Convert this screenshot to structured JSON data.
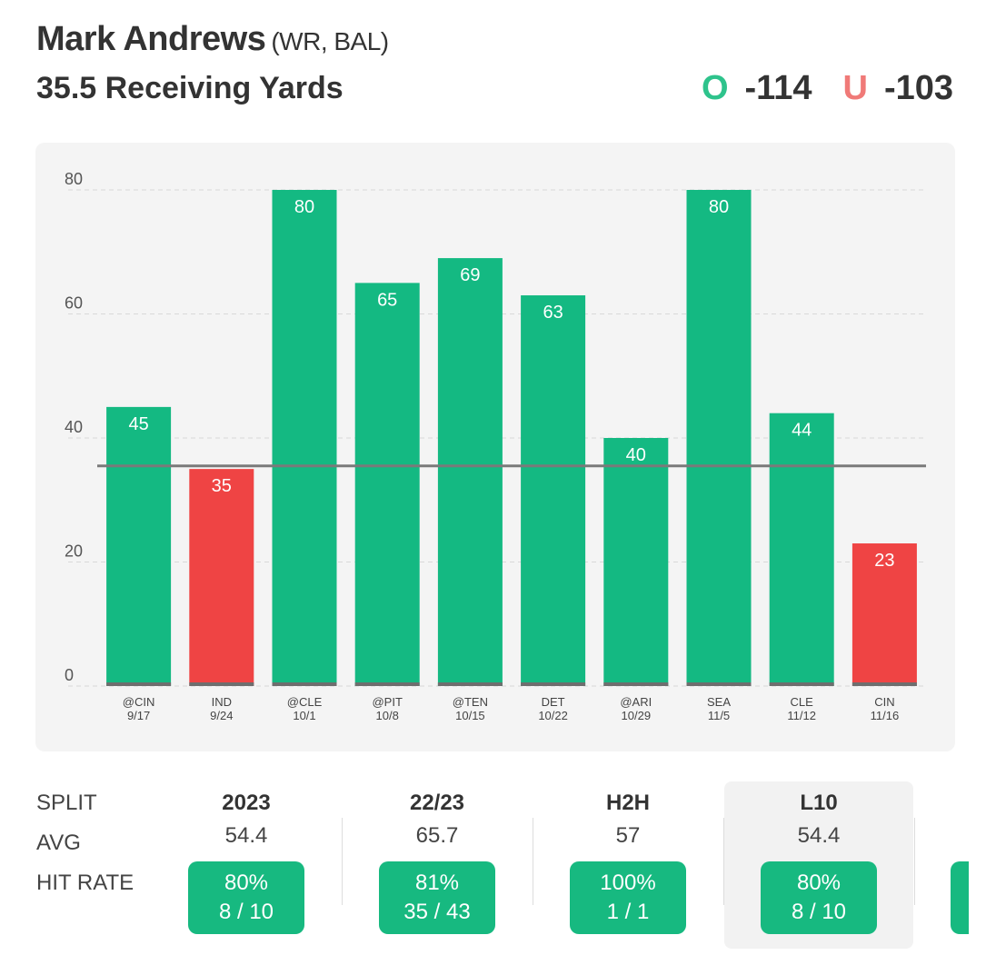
{
  "player": {
    "name": "Mark Andrews",
    "meta": "(WR, BAL)"
  },
  "prop": {
    "line_label": "35.5 Receiving Yards"
  },
  "odds": {
    "over_letter": "O",
    "over_value": "-114",
    "under_letter": "U",
    "under_value": "-103"
  },
  "colors": {
    "over": "#14b982",
    "under": "#ef4444",
    "line": "#7a7a7a"
  },
  "chart_data": {
    "type": "bar",
    "title": "",
    "ylabel": "",
    "xlabel": "",
    "ylim": [
      0,
      80
    ],
    "yticks": [
      0,
      20,
      40,
      60,
      80
    ],
    "threshold": 35.5,
    "categories": [
      {
        "opp": "@CIN",
        "date": "9/17"
      },
      {
        "opp": "IND",
        "date": "9/24"
      },
      {
        "opp": "@CLE",
        "date": "10/1"
      },
      {
        "opp": "@PIT",
        "date": "10/8"
      },
      {
        "opp": "@TEN",
        "date": "10/15"
      },
      {
        "opp": "DET",
        "date": "10/22"
      },
      {
        "opp": "@ARI",
        "date": "10/29"
      },
      {
        "opp": "SEA",
        "date": "11/5"
      },
      {
        "opp": "CLE",
        "date": "11/12"
      },
      {
        "opp": "CIN",
        "date": "11/16"
      }
    ],
    "values": [
      45,
      35,
      80,
      65,
      69,
      63,
      40,
      80,
      44,
      23
    ]
  },
  "splits": {
    "labels": {
      "split": "SPLIT",
      "avg": "AVG",
      "hit_rate": "HIT RATE"
    },
    "columns": [
      {
        "head": "2023",
        "avg": "54.4",
        "pct": "80%",
        "frac": "8 / 10"
      },
      {
        "head": "22/23",
        "avg": "65.7",
        "pct": "81%",
        "frac": "35 / 43"
      },
      {
        "head": "H2H",
        "avg": "57",
        "pct": "100%",
        "frac": "1 / 1"
      },
      {
        "head": "L10",
        "avg": "54.4",
        "pct": "80%",
        "frac": "8 / 10"
      }
    ]
  }
}
